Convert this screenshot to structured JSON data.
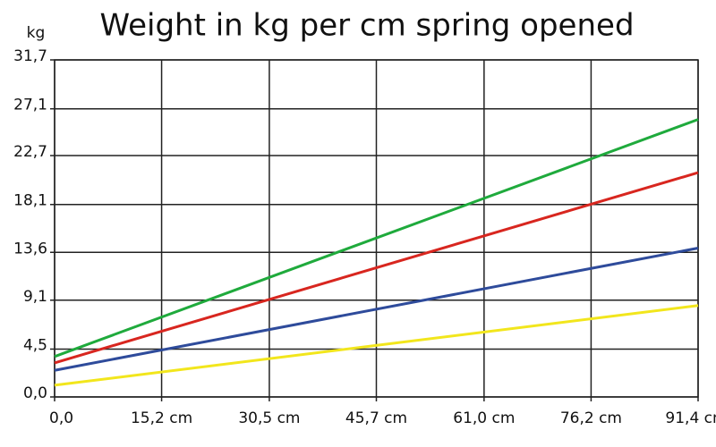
{
  "chart_data": {
    "type": "line",
    "title": "Weight in kg per cm spring opened",
    "y_label": "kg",
    "x": [
      0,
      91.4
    ],
    "xlim": [
      0,
      91.4
    ],
    "xticks": [
      {
        "value": 0,
        "label": "0,0"
      },
      {
        "value": 15.2,
        "label": "15,2 cm"
      },
      {
        "value": 30.5,
        "label": "30,5 cm"
      },
      {
        "value": 45.7,
        "label": "45,7 cm"
      },
      {
        "value": 61.0,
        "label": "61,0 cm"
      },
      {
        "value": 76.2,
        "label": "76,2 cm"
      },
      {
        "value": 91.4,
        "label": "91,4 cm"
      }
    ],
    "ylim": [
      0,
      31.7
    ],
    "yticks": [
      {
        "value": 0,
        "label": "0,0"
      },
      {
        "value": 4.5,
        "label": "4,5"
      },
      {
        "value": 9.1,
        "label": "9,1"
      },
      {
        "value": 13.6,
        "label": "13,6"
      },
      {
        "value": 18.1,
        "label": "18,1"
      },
      {
        "value": 22.7,
        "label": "22,7"
      },
      {
        "value": 27.1,
        "label": "27,1"
      },
      {
        "value": 31.7,
        "label": "31,7"
      }
    ],
    "grid": true,
    "series": [
      {
        "color": "#f2e61c",
        "values": [
          1.1,
          8.6
        ]
      },
      {
        "color": "#2e4b9b",
        "values": [
          2.5,
          14.0
        ]
      },
      {
        "color": "#d8261f",
        "values": [
          3.2,
          21.1
        ]
      },
      {
        "color": "#1faa3c",
        "values": [
          3.8,
          26.1
        ]
      }
    ]
  }
}
